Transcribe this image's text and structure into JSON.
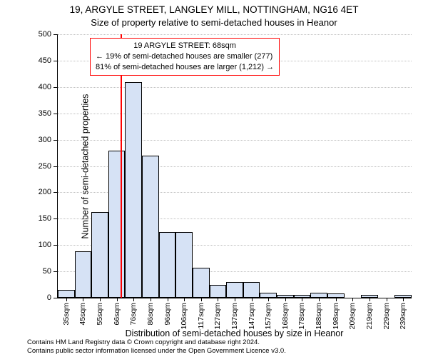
{
  "title1": "19, ARGYLE STREET, LANGLEY MILL, NOTTINGHAM, NG16 4ET",
  "title2": "Size of property relative to semi-detached houses in Heanor",
  "ylabel": "Number of semi-detached properties",
  "xlabel": "Distribution of semi-detached houses by size in Heanor",
  "chart": {
    "type": "histogram",
    "ylim": [
      0,
      500
    ],
    "ytick_step": 50,
    "background_color": "#ffffff",
    "grid_color": "#bfbfbf",
    "bar_fill": "#d6e2f5",
    "bar_stroke": "#000000",
    "marker_color": "#ff0000",
    "marker_x": 68,
    "x_categories": [
      "35sqm",
      "45sqm",
      "55sqm",
      "66sqm",
      "76sqm",
      "86sqm",
      "96sqm",
      "106sqm",
      "117sqm",
      "127sqm",
      "137sqm",
      "147sqm",
      "157sqm",
      "168sqm",
      "178sqm",
      "188sqm",
      "198sqm",
      "209sqm",
      "219sqm",
      "229sqm",
      "239sqm"
    ],
    "values": [
      15,
      88,
      163,
      279,
      409,
      270,
      125,
      125,
      57,
      25,
      30,
      30,
      10,
      5,
      6,
      9,
      8,
      0,
      5,
      0,
      5
    ],
    "bar_width_ratio": 1.0
  },
  "annotation": {
    "line1": "19 ARGYLE STREET: 68sqm",
    "line2": "← 19% of semi-detached houses are smaller (277)",
    "line3": "81% of semi-detached houses are larger (1,212) →",
    "border_color": "#ff0000"
  },
  "footer": {
    "line1": "Contains HM Land Registry data © Crown copyright and database right 2024.",
    "line2": "Contains public sector information licensed under the Open Government Licence v3.0."
  }
}
